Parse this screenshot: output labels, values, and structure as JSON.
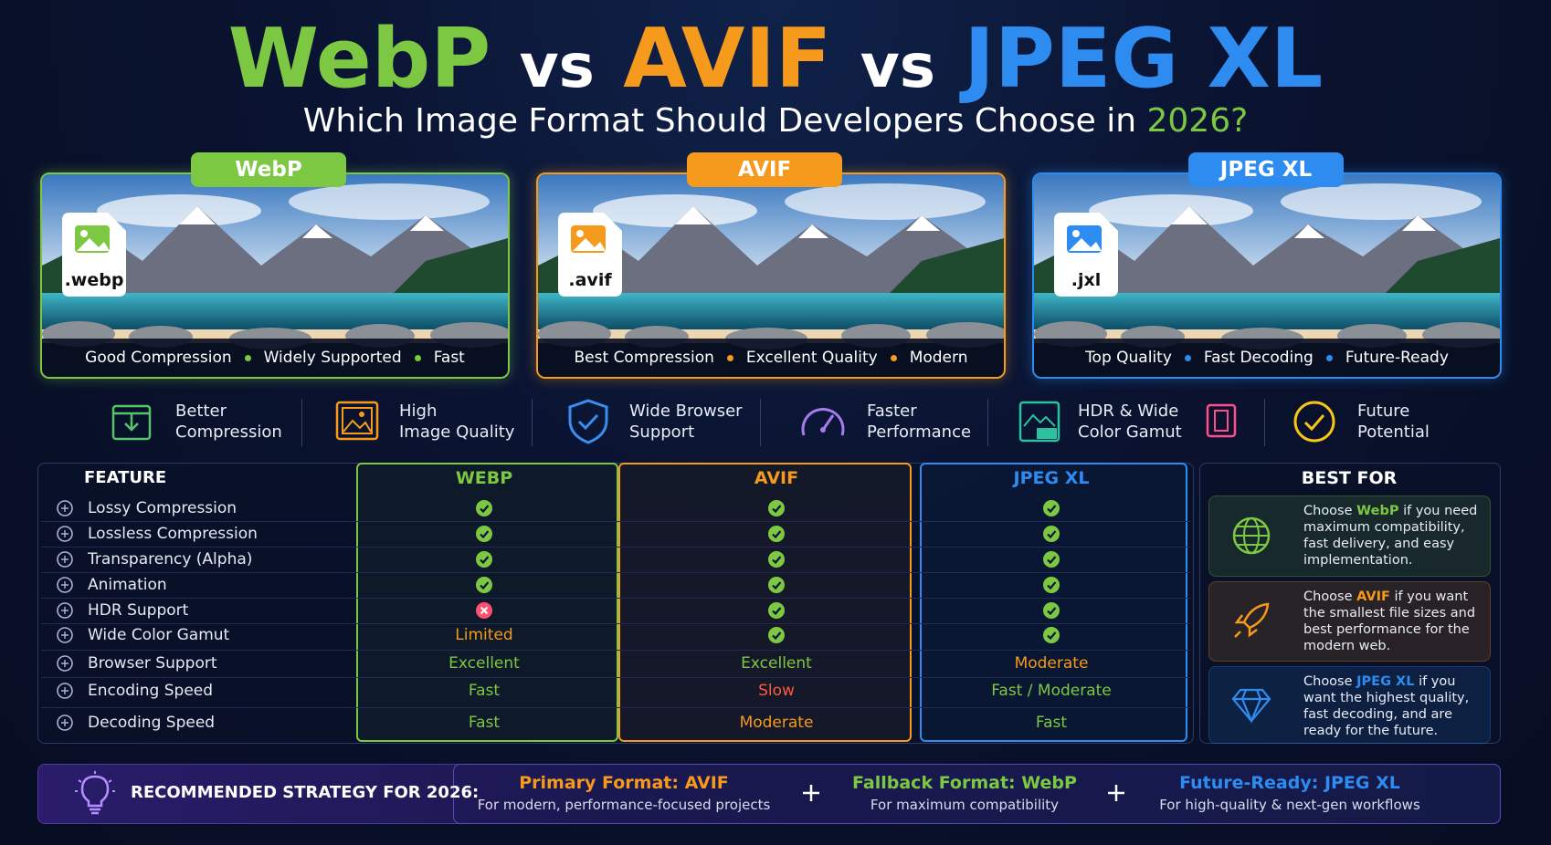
{
  "title": {
    "webp": "WebP",
    "vs1": "vs",
    "avif": "AVIF",
    "vs2": "vs",
    "jxl": "JPEG XL"
  },
  "subtitle": {
    "text": "Which Image Format Should Developers Choose in",
    "year": "2026?"
  },
  "cards": [
    {
      "label": "WebP",
      "ext": ".webp",
      "color": "#7dc843",
      "tags": [
        "Good Compression",
        "Widely Supported",
        "Fast"
      ]
    },
    {
      "label": "AVIF",
      "ext": ".avif",
      "color": "#f59a1c",
      "tags": [
        "Best Compression",
        "Excellent Quality",
        "Modern"
      ]
    },
    {
      "label": "JPEG XL",
      "ext": ".jxl",
      "color": "#2e8cf0",
      "tags": [
        "Top Quality",
        "Fast Decoding",
        "Future-Ready"
      ]
    }
  ],
  "benefits": [
    {
      "line1": "Better",
      "line2": "Compression",
      "color": "#58c46a"
    },
    {
      "line1": "High",
      "line2": "Image Quality",
      "color": "#f59a1c"
    },
    {
      "line1": "Wide Browser",
      "line2": "Support",
      "color": "#3a8ef0"
    },
    {
      "line1": "Faster",
      "line2": "Performance",
      "color": "#a77af0"
    },
    {
      "line1": "HDR & Wide",
      "line2": "Color Gamut",
      "color": "#2fc0a0"
    },
    {
      "line1": "Future",
      "line2": "Potential",
      "color": "#f5c518"
    }
  ],
  "table": {
    "header": [
      "FEATURE",
      "WEBP",
      "AVIF",
      "JPEG XL"
    ],
    "rows": [
      {
        "feature": "Lossy Compression",
        "cells": [
          {
            "icon": "check"
          },
          {
            "icon": "check"
          },
          {
            "icon": "check"
          }
        ]
      },
      {
        "feature": "Lossless Compression",
        "cells": [
          {
            "icon": "check"
          },
          {
            "icon": "check"
          },
          {
            "icon": "check"
          }
        ]
      },
      {
        "feature": "Transparency (Alpha)",
        "cells": [
          {
            "icon": "check"
          },
          {
            "icon": "check"
          },
          {
            "icon": "check"
          }
        ]
      },
      {
        "feature": "Animation",
        "cells": [
          {
            "icon": "check"
          },
          {
            "icon": "check"
          },
          {
            "icon": "check"
          }
        ]
      },
      {
        "feature": "HDR Support",
        "cells": [
          {
            "icon": "cross"
          },
          {
            "icon": "check"
          },
          {
            "icon": "check"
          }
        ]
      },
      {
        "feature": "Wide Color Gamut",
        "cells": [
          {
            "text": "Limited",
            "color": "#f59a1c"
          },
          {
            "icon": "check"
          },
          {
            "icon": "check"
          }
        ]
      },
      {
        "feature": "Browser Support",
        "cells": [
          {
            "text": "Excellent",
            "color": "#7dc843"
          },
          {
            "text": "Excellent",
            "color": "#7dc843"
          },
          {
            "text": "Moderate",
            "color": "#f59a1c"
          }
        ]
      },
      {
        "feature": "Encoding Speed",
        "cells": [
          {
            "text": "Fast",
            "color": "#7dc843"
          },
          {
            "text": "Slow",
            "color": "#ff5a3c"
          },
          {
            "text": "Fast / Moderate",
            "color": "#7dc843"
          }
        ]
      },
      {
        "feature": "Decoding Speed",
        "cells": [
          {
            "text": "Fast",
            "color": "#7dc843"
          },
          {
            "text": "Moderate",
            "color": "#f59a1c"
          },
          {
            "text": "Fast",
            "color": "#7dc843"
          }
        ]
      }
    ]
  },
  "best_for": {
    "title": "BEST FOR",
    "items": [
      {
        "lead": "Choose",
        "format": "WebP",
        "text": "if you need maximum compatibility, fast delivery, and easy implementation.",
        "color": "#7dc843"
      },
      {
        "lead": "Choose",
        "format": "AVIF",
        "text": "if you want the smallest file sizes and best performance for the modern web.",
        "color": "#f59a1c"
      },
      {
        "lead": "Choose",
        "format": "JPEG XL",
        "text": "if you want the highest quality, fast decoding, and are ready for the future.",
        "color": "#2e8cf0"
      }
    ]
  },
  "strategy": {
    "label": "RECOMMENDED STRATEGY FOR 2026:",
    "items": [
      {
        "title": "Primary Format: AVIF",
        "desc": "For modern, performance-focused projects",
        "color": "#f59a1c"
      },
      {
        "title": "Fallback Format: WebP",
        "desc": "For maximum compatibility",
        "color": "#7dc843"
      },
      {
        "title": "Future-Ready: JPEG XL",
        "desc": "For high-quality & next-gen workflows",
        "color": "#2e8cf0"
      }
    ]
  }
}
